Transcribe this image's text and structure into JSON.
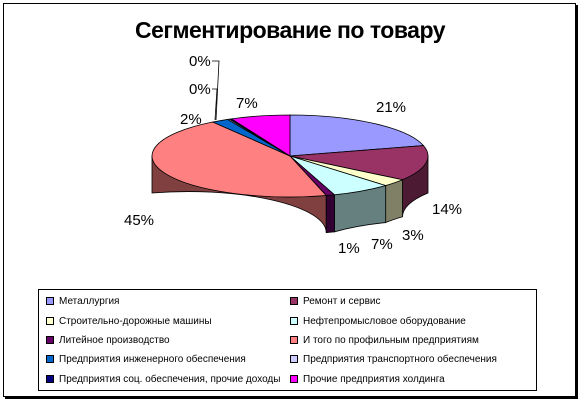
{
  "chart_data": {
    "type": "pie",
    "title": "Сегментирование по товару",
    "slices": [
      {
        "label": "Металлургия",
        "value": 21,
        "display": "21%",
        "color": "#9999ff"
      },
      {
        "label": "Ремонт и сервис",
        "value": 14,
        "display": "14%",
        "color": "#993366"
      },
      {
        "label": "Строительно-дорожные машины",
        "value": 3,
        "display": "3%",
        "color": "#ffffcc"
      },
      {
        "label": "Нефтепромысловое оборудование",
        "value": 7,
        "display": "7%",
        "color": "#ccffff"
      },
      {
        "label": "Литейное производство",
        "value": 1,
        "display": "1%",
        "color": "#660066"
      },
      {
        "label": "И того по профильным предприятиям",
        "value": 45,
        "display": "45%",
        "color": "#ff8080"
      },
      {
        "label": "Предприятия инженерного обеспечения",
        "value": 2,
        "display": "2%",
        "color": "#0066cc"
      },
      {
        "label": "Предприятия транспортного обеспечения",
        "value": 0,
        "display": "0%",
        "color": "#ccccff"
      },
      {
        "label": "Предприятия соц. обеспечения, прочие доходы",
        "value": 0,
        "display": "0%",
        "color": "#000080"
      },
      {
        "label": "Прочие предприятия холдинга",
        "value": 7,
        "display": "7%",
        "color": "#ff00ff"
      }
    ],
    "legend_position": "bottom"
  }
}
